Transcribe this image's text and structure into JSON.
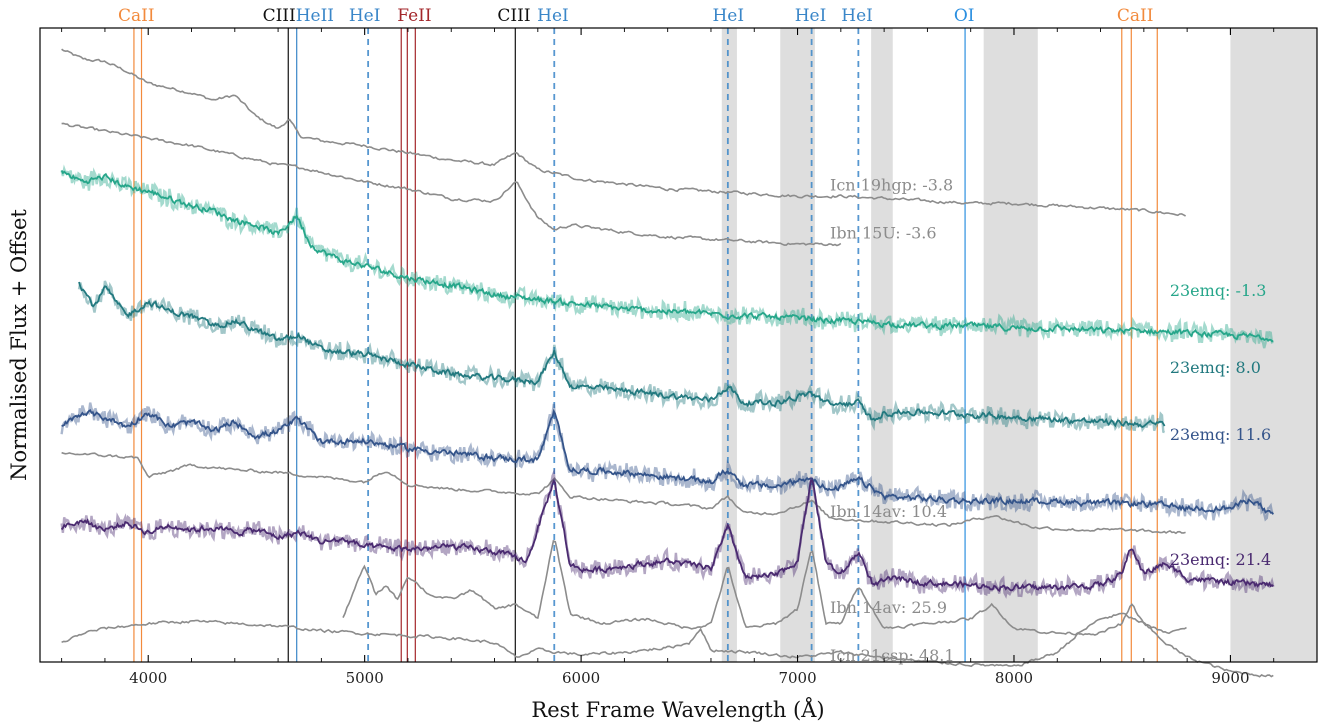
{
  "chart_data": {
    "type": "line",
    "title": "",
    "xlabel": "Rest Frame Wavelength (Å)",
    "ylabel": "Normalised Flux + Offset",
    "xlim": [
      3500,
      9400
    ],
    "xticks": [
      4000,
      5000,
      6000,
      7000,
      8000,
      9000
    ],
    "xtick_labels": [
      "4000",
      "5000",
      "6000",
      "7000",
      "8000",
      "9000"
    ],
    "ylim": [
      0,
      13.2
    ],
    "grid": false,
    "colors": {
      "CaII": "#f28a3c",
      "CIII": "#111111",
      "HeII": "#3a86c8",
      "HeI": "#3a86c8",
      "FeII": "#a3262a",
      "OI": "#2b8fe0",
      "comparison": "#8c8c8c",
      "23emq_m1.3": "#26a68a",
      "23emq_8.0": "#22797f",
      "23emq_11.6": "#34548a",
      "23emq_21.4": "#4a2a70",
      "shade": "#dedede"
    },
    "shaded_regions": [
      [
        6650,
        6720
      ],
      [
        6920,
        7080
      ],
      [
        7340,
        7440
      ],
      [
        7860,
        8110
      ],
      [
        9000,
        9400
      ]
    ],
    "line_markers": [
      {
        "label": "CaII",
        "x": [
          3934,
          3969
        ],
        "style": "solid",
        "color_key": "CaII",
        "label_x": 3945
      },
      {
        "label": "CIII",
        "x": [
          4647
        ],
        "style": "solid",
        "color_key": "CIII",
        "label_x": 4605
      },
      {
        "label": "HeII",
        "x": [
          4686
        ],
        "style": "solid",
        "color_key": "HeII",
        "label_x": 4770
      },
      {
        "label": "HeI",
        "x": [
          5016
        ],
        "style": "dashed",
        "color_key": "HeI",
        "label_x": 5000
      },
      {
        "label": "FeII",
        "x": [
          5169,
          5197,
          5234
        ],
        "style": "solid",
        "color_key": "FeII",
        "label_x": 5230
      },
      {
        "label": "CIII",
        "x": [
          5696
        ],
        "style": "solid",
        "color_key": "CIII",
        "label_x": 5690
      },
      {
        "label": "HeI",
        "x": [
          5876
        ],
        "style": "dashed",
        "color_key": "HeI",
        "label_x": 5870
      },
      {
        "label": "HeI",
        "x": [
          6678
        ],
        "style": "dashed",
        "color_key": "HeI",
        "label_x": 6680
      },
      {
        "label": "HeI",
        "x": [
          7065
        ],
        "style": "dashed",
        "color_key": "HeI",
        "label_x": 7060
      },
      {
        "label": "HeI",
        "x": [
          7281
        ],
        "style": "dashed",
        "color_key": "HeI",
        "label_x": 7275
      },
      {
        "label": "OI",
        "x": [
          7774
        ],
        "style": "solid",
        "color_key": "OI",
        "label_x": 7770
      },
      {
        "label": "CaII",
        "x": [
          8498,
          8542,
          8662
        ],
        "style": "solid",
        "color_key": "CaII",
        "label_x": 8560
      }
    ],
    "series": [
      {
        "name": "Icn 19hgp: -3.8",
        "color_key": "comparison",
        "label_x": 7150,
        "label_y": 9.82,
        "x": [
          3600,
          3700,
          3800,
          3900,
          4000,
          4100,
          4200,
          4300,
          4400,
          4500,
          4600,
          4650,
          4700,
          4800,
          5000,
          5200,
          5400,
          5600,
          5700,
          5800,
          6000,
          6200,
          6400,
          6600,
          6800,
          7000,
          7200,
          7400,
          7600,
          7800,
          8000,
          8200,
          8400,
          8600,
          8800
        ],
        "y": [
          12.75,
          12.55,
          12.5,
          12.3,
          12.05,
          11.95,
          11.85,
          11.7,
          11.8,
          11.35,
          11.1,
          11.3,
          10.95,
          10.85,
          10.75,
          10.6,
          10.45,
          10.35,
          10.6,
          10.25,
          10.05,
          9.95,
          9.85,
          9.8,
          9.75,
          9.7,
          9.7,
          9.65,
          9.6,
          9.55,
          9.55,
          9.5,
          9.45,
          9.4,
          9.3
        ]
      },
      {
        "name": "Ibn 15U: -3.6",
        "color_key": "comparison",
        "label_x": 7150,
        "label_y": 8.82,
        "x": [
          3600,
          3800,
          4000,
          4200,
          4400,
          4600,
          4700,
          4800,
          5000,
          5200,
          5400,
          5600,
          5700,
          5800,
          5876,
          5950,
          6200,
          6400,
          6600,
          6800,
          7000,
          7200
        ],
        "y": [
          11.2,
          11.05,
          10.9,
          10.75,
          10.55,
          10.35,
          10.3,
          10.2,
          10.0,
          9.85,
          9.65,
          9.6,
          10.0,
          9.25,
          9.0,
          9.1,
          8.95,
          8.85,
          8.8,
          8.75,
          8.7,
          8.7
        ]
      },
      {
        "name": "23emq: -1.3",
        "display_label": "23emq:   -1.3",
        "color_key": "23emq_m1.3",
        "label_x": 8720,
        "label_y": 7.62,
        "x": [
          3600,
          3700,
          3800,
          3900,
          4000,
          4100,
          4200,
          4300,
          4400,
          4500,
          4600,
          4686,
          4750,
          4800,
          4900,
          5000,
          5200,
          5400,
          5600,
          5800,
          6000,
          6200,
          6400,
          6600,
          6800,
          7000,
          7200,
          7400,
          7600,
          7800,
          8000,
          8200,
          8400,
          8600,
          8800,
          9000,
          9200
        ],
        "y": [
          10.2,
          10.0,
          10.1,
          9.9,
          9.8,
          9.65,
          9.5,
          9.4,
          9.2,
          9.1,
          8.9,
          9.3,
          8.7,
          8.55,
          8.35,
          8.25,
          8.0,
          7.85,
          7.65,
          7.55,
          7.45,
          7.35,
          7.3,
          7.25,
          7.2,
          7.15,
          7.1,
          7.05,
          7.0,
          7.0,
          6.95,
          6.95,
          6.9,
          6.9,
          6.85,
          6.8,
          6.75
        ]
      },
      {
        "name": "23emq: 8.0",
        "display_label": "23emq:    8.0",
        "color_key": "23emq_8.0",
        "label_x": 8720,
        "label_y": 6.02,
        "x": [
          3680,
          3750,
          3800,
          3900,
          4000,
          4100,
          4200,
          4300,
          4400,
          4500,
          4600,
          4700,
          4800,
          5000,
          5200,
          5400,
          5600,
          5800,
          5876,
          5950,
          6200,
          6400,
          6600,
          6678,
          6750,
          6900,
          7065,
          7150,
          7281,
          7350,
          7400,
          7600,
          7800,
          8000,
          8200,
          8400,
          8600,
          8700
        ],
        "y": [
          7.9,
          7.4,
          7.8,
          7.2,
          7.5,
          7.3,
          7.2,
          7.0,
          7.1,
          6.9,
          6.7,
          6.8,
          6.5,
          6.4,
          6.2,
          6.0,
          5.9,
          5.85,
          6.45,
          5.75,
          5.65,
          5.55,
          5.45,
          5.75,
          5.4,
          5.4,
          5.6,
          5.35,
          5.4,
          5.0,
          5.2,
          5.2,
          5.15,
          5.1,
          5.05,
          5.0,
          4.95,
          4.95
        ]
      },
      {
        "name": "23emq: 11.6",
        "display_label": "23emq: 11.6",
        "color_key": "23emq_11.6",
        "label_x": 8720,
        "label_y": 4.62,
        "x": [
          3600,
          3700,
          3800,
          3900,
          4000,
          4100,
          4200,
          4300,
          4400,
          4500,
          4600,
          4686,
          4800,
          5000,
          5200,
          5400,
          5600,
          5800,
          5876,
          5950,
          6200,
          6400,
          6600,
          6678,
          6750,
          6900,
          7065,
          7150,
          7281,
          7400,
          7600,
          7800,
          8000,
          8200,
          8400,
          8600,
          8800,
          9000,
          9100,
          9200
        ],
        "y": [
          4.9,
          5.2,
          5.1,
          4.9,
          5.2,
          4.9,
          5.0,
          4.8,
          5.0,
          4.7,
          4.8,
          5.05,
          4.6,
          4.6,
          4.45,
          4.35,
          4.25,
          4.2,
          5.2,
          4.0,
          3.95,
          3.85,
          3.75,
          4.0,
          3.7,
          3.65,
          3.85,
          3.55,
          3.8,
          3.45,
          3.4,
          3.35,
          3.35,
          3.35,
          3.3,
          3.3,
          3.2,
          3.2,
          3.4,
          3.0
        ]
      },
      {
        "name": "Ibn 14av: 10.4",
        "color_key": "comparison",
        "label_x": 7150,
        "label_y": 3.02,
        "x": [
          3600,
          3800,
          3950,
          4000,
          4200,
          4400,
          4600,
          4800,
          5000,
          5100,
          5200,
          5400,
          5600,
          5800,
          5876,
          5950,
          6200,
          6400,
          6600,
          6678,
          6750,
          6900,
          7065,
          7150,
          7300,
          7500,
          7700,
          7900,
          8100,
          8300,
          8500,
          8700,
          8800
        ],
        "y": [
          4.35,
          4.3,
          4.25,
          3.85,
          4.1,
          4.0,
          3.95,
          3.85,
          3.75,
          4.0,
          3.7,
          3.6,
          3.55,
          3.5,
          3.8,
          3.45,
          3.35,
          3.3,
          3.2,
          3.45,
          3.1,
          3.1,
          3.35,
          3.0,
          2.95,
          2.9,
          2.85,
          3.05,
          2.8,
          2.75,
          2.75,
          2.7,
          2.7
        ]
      },
      {
        "name": "23emq: 21.4",
        "display_label": "23emq: 21.4",
        "color_key": "23emq_21.4",
        "label_x": 8720,
        "label_y": 2.02,
        "x": [
          3600,
          3700,
          3800,
          3900,
          4000,
          4100,
          4200,
          4300,
          4400,
          4500,
          4600,
          4700,
          4800,
          4900,
          5000,
          5200,
          5400,
          5600,
          5750,
          5876,
          5950,
          6050,
          6200,
          6400,
          6600,
          6678,
          6760,
          6900,
          7000,
          7065,
          7130,
          7200,
          7281,
          7350,
          7450,
          7600,
          7800,
          8000,
          8200,
          8400,
          8500,
          8542,
          8600,
          8700,
          8800,
          9000,
          9200
        ],
        "y": [
          2.8,
          2.95,
          2.75,
          2.9,
          2.7,
          2.85,
          2.75,
          2.8,
          2.7,
          2.75,
          2.6,
          2.7,
          2.5,
          2.55,
          2.4,
          2.35,
          2.4,
          2.3,
          2.1,
          3.8,
          2.0,
          1.9,
          2.0,
          2.1,
          1.95,
          2.8,
          1.75,
          1.8,
          2.1,
          3.9,
          2.1,
          1.8,
          2.3,
          1.6,
          1.75,
          1.65,
          1.6,
          1.55,
          1.55,
          1.6,
          1.85,
          2.4,
          1.85,
          2.05,
          1.75,
          1.65,
          1.6
        ]
      },
      {
        "name": "Ibn 14av: 25.9",
        "color_key": "comparison",
        "label_x": 7150,
        "label_y": 1.02,
        "x": [
          4900,
          4950,
          5000,
          5050,
          5100,
          5150,
          5200,
          5300,
          5400,
          5500,
          5600,
          5700,
          5800,
          5876,
          5950,
          6100,
          6300,
          6500,
          6600,
          6678,
          6760,
          6900,
          7000,
          7065,
          7130,
          7200,
          7281,
          7400,
          7600,
          7800,
          7900,
          8000,
          8200,
          8400,
          8500,
          8542,
          8600,
          8700,
          8800
        ],
        "y": [
          0.9,
          1.5,
          2.0,
          1.4,
          1.6,
          1.3,
          1.8,
          1.4,
          1.3,
          1.5,
          1.1,
          1.2,
          0.9,
          2.6,
          1.0,
          0.8,
          0.9,
          0.7,
          0.8,
          2.0,
          0.7,
          0.8,
          1.1,
          2.4,
          0.8,
          0.8,
          1.6,
          0.7,
          0.8,
          0.9,
          1.2,
          0.7,
          0.6,
          0.6,
          0.8,
          1.2,
          0.8,
          0.6,
          0.7
        ]
      },
      {
        "name": "Icn 21csp: 48.1",
        "color_key": "comparison",
        "label_x": 7150,
        "label_y": 0.02,
        "x": [
          3600,
          3700,
          3800,
          3900,
          4000,
          4200,
          4400,
          4600,
          4700,
          4800,
          5000,
          5200,
          5400,
          5600,
          5700,
          5800,
          6000,
          6200,
          6400,
          6500,
          6550,
          6600,
          6800,
          7000,
          7200,
          7400,
          7600,
          7800,
          8000,
          8200,
          8300,
          8400,
          8500,
          8600,
          8700,
          8800,
          9000,
          9200
        ],
        "y": [
          0.4,
          0.6,
          0.7,
          0.75,
          0.8,
          0.85,
          0.8,
          0.75,
          0.7,
          0.65,
          0.6,
          0.55,
          0.5,
          0.4,
          0.1,
          0.25,
          0.15,
          0.2,
          0.3,
          0.4,
          0.7,
          0.25,
          0.2,
          0.1,
          0.2,
          0.1,
          0.0,
          -0.05,
          -0.1,
          0.2,
          0.6,
          0.9,
          1.0,
          0.8,
          0.4,
          0.1,
          -0.2,
          -0.3
        ]
      }
    ]
  }
}
